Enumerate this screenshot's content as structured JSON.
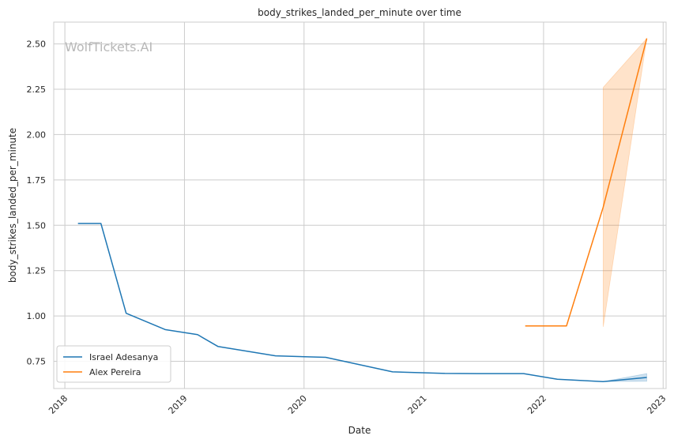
{
  "chart_data": {
    "type": "line",
    "title": "body_strikes_landed_per_minute over time",
    "xlabel": "Date",
    "ylabel": "body_strikes_landed_per_minute",
    "watermark": "WolfTickets.AI",
    "xlim": [
      "2017-11-28",
      "2023-01-10"
    ],
    "ylim": [
      0.6,
      2.62
    ],
    "x_ticks": [
      "2018",
      "2019",
      "2020",
      "2021",
      "2022",
      "2023"
    ],
    "y_ticks": [
      "0.75",
      "1.00",
      "1.25",
      "1.50",
      "1.75",
      "2.00",
      "2.25",
      "2.50"
    ],
    "grid": true,
    "legend_position": "lower-left",
    "series": [
      {
        "name": "Israel Adesanya",
        "color": "#1f77b4",
        "points": [
          {
            "x": "2018-02-10",
            "y": 1.51
          },
          {
            "x": "2018-04-21",
            "y": 1.51
          },
          {
            "x": "2018-07-07",
            "y": 1.015
          },
          {
            "x": "2018-11-03",
            "y": 0.925
          },
          {
            "x": "2019-02-10",
            "y": 0.897
          },
          {
            "x": "2019-04-13",
            "y": 0.832
          },
          {
            "x": "2019-10-06",
            "y": 0.78
          },
          {
            "x": "2020-03-07",
            "y": 0.772
          },
          {
            "x": "2020-09-27",
            "y": 0.692
          },
          {
            "x": "2021-03-06",
            "y": 0.683
          },
          {
            "x": "2021-06-12",
            "y": 0.682
          },
          {
            "x": "2021-11-01",
            "y": 0.682
          },
          {
            "x": "2022-02-12",
            "y": 0.651
          },
          {
            "x": "2022-07-02",
            "y": 0.638
          },
          {
            "x": "2022-11-12",
            "y": 0.661
          }
        ],
        "band": [
          {
            "x": "2022-07-02",
            "lo": 0.638,
            "hi": 0.638
          },
          {
            "x": "2022-11-12",
            "lo": 0.64,
            "hi": 0.682
          }
        ]
      },
      {
        "name": "Alex Pereira",
        "color": "#ff7f0e",
        "points": [
          {
            "x": "2021-11-06",
            "y": 0.945
          },
          {
            "x": "2022-03-12",
            "y": 0.945
          },
          {
            "x": "2022-07-02",
            "y": 1.6
          },
          {
            "x": "2022-11-12",
            "y": 2.53
          }
        ],
        "band": [
          {
            "x": "2022-07-02",
            "lo": 0.94,
            "hi": 2.26
          },
          {
            "x": "2022-11-12",
            "lo": 2.53,
            "hi": 2.53
          }
        ]
      }
    ]
  }
}
